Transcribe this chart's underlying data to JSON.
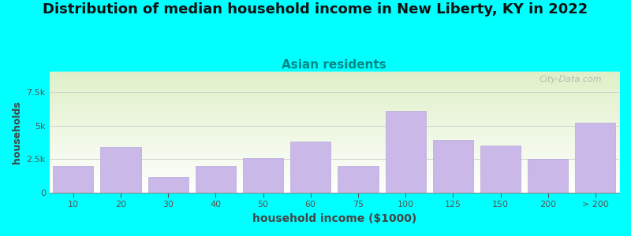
{
  "title": "Distribution of median household income in New Liberty, KY in 2022",
  "subtitle": "Asian residents",
  "xlabel": "household income ($1000)",
  "ylabel": "households",
  "background_outer": "#00FFFF",
  "bar_color": "#c9b8e8",
  "bar_edge_color": "#b8a8d8",
  "categories": [
    "10",
    "20",
    "30",
    "40",
    "50",
    "60",
    "75",
    "100",
    "125",
    "150",
    "200",
    "> 200"
  ],
  "values": [
    2000,
    3400,
    1200,
    2000,
    2600,
    3800,
    2000,
    6100,
    3900,
    3500,
    2500,
    5200
  ],
  "ylim": [
    0,
    9000
  ],
  "yticks": [
    0,
    2500,
    5000,
    7500
  ],
  "ytick_labels": [
    "0",
    "2.5k",
    "5k",
    "7.5k"
  ],
  "title_fontsize": 13,
  "subtitle_fontsize": 11,
  "watermark": "City-Data.com"
}
